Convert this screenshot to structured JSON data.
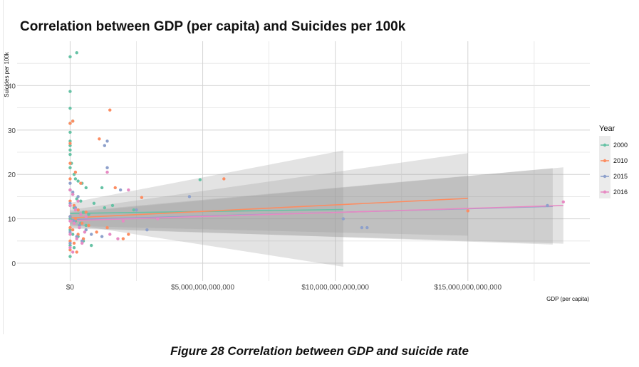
{
  "caption": "Figure 28 Correlation between GDP and suicide rate",
  "chart_data": {
    "type": "scatter",
    "title": "Correlation between GDP (per capita) and Suicides per 100k",
    "xlabel": "GDP (per capita)",
    "ylabel": "Suicides per 100k",
    "xlim": [
      -2000000000000,
      19600000000000
    ],
    "ylim": [
      -4,
      50
    ],
    "x_ticks": [
      0,
      5000000000000,
      10000000000000,
      15000000000000
    ],
    "x_tick_labels": [
      "$0",
      "$5,000,000,000,000",
      "$10,000,000,000,000",
      "$15,000,000,000,000"
    ],
    "y_ticks": [
      0,
      10,
      20,
      30,
      40
    ],
    "y_tick_labels": [
      "0",
      "10",
      "20",
      "30",
      "40"
    ],
    "grid": true,
    "legend": {
      "title": "Year",
      "position": "right"
    },
    "series": [
      {
        "name": "2000",
        "color": "#66c2a5",
        "points": [
          [
            0,
            46.5
          ],
          [
            250000000000,
            47.4
          ],
          [
            0,
            38.7
          ],
          [
            0,
            34.9
          ],
          [
            0,
            31.5
          ],
          [
            100000000000,
            32.0
          ],
          [
            0,
            29.5
          ],
          [
            0,
            27.5
          ],
          [
            0,
            26.5
          ],
          [
            0,
            25.5
          ],
          [
            0,
            24.5
          ],
          [
            50000000000,
            22.5
          ],
          [
            0,
            21.5
          ],
          [
            150000000000,
            20.0
          ],
          [
            200000000000,
            19.0
          ],
          [
            300000000000,
            18.5
          ],
          [
            450000000000,
            18.0
          ],
          [
            600000000000,
            17.0
          ],
          [
            0,
            16.5
          ],
          [
            100000000000,
            15.5
          ],
          [
            250000000000,
            14.5
          ],
          [
            400000000000,
            14.0
          ],
          [
            0,
            13.0
          ],
          [
            150000000000,
            12.5
          ],
          [
            300000000000,
            12.0
          ],
          [
            500000000000,
            11.5
          ],
          [
            700000000000,
            11.0
          ],
          [
            0,
            10.0
          ],
          [
            200000000000,
            9.5
          ],
          [
            400000000000,
            9.0
          ],
          [
            600000000000,
            8.5
          ],
          [
            0,
            7.5
          ],
          [
            100000000000,
            6.5
          ],
          [
            300000000000,
            6.0
          ],
          [
            500000000000,
            5.0
          ],
          [
            0,
            4.0
          ],
          [
            150000000000,
            3.5
          ],
          [
            0,
            1.5
          ],
          [
            800000000000,
            4.0
          ],
          [
            1200000000000,
            17.0
          ],
          [
            1300000000000,
            12.5
          ],
          [
            2400000000000,
            12.0
          ],
          [
            4900000000000,
            18.8
          ],
          [
            1600000000000,
            13.0
          ],
          [
            900000000000,
            13.5
          ]
        ],
        "trend": {
          "x": [
            0,
            10300000000000
          ],
          "y": [
            11.2,
            12.1
          ],
          "ci_low": [
            8.8,
            -0.8
          ],
          "ci_high": [
            13.6,
            25.4
          ]
        }
      },
      {
        "name": "2010",
        "color": "#fc8d62",
        "points": [
          [
            0,
            31.5
          ],
          [
            100000000000,
            32.0
          ],
          [
            1500000000000,
            34.5
          ],
          [
            1100000000000,
            28.0
          ],
          [
            0,
            27.0
          ],
          [
            0,
            22.5
          ],
          [
            200000000000,
            20.5
          ],
          [
            0,
            19.0
          ],
          [
            400000000000,
            18.0
          ],
          [
            1700000000000,
            17.0
          ],
          [
            2700000000000,
            14.8
          ],
          [
            5800000000000,
            19.0
          ],
          [
            0,
            14.0
          ],
          [
            150000000000,
            13.0
          ],
          [
            300000000000,
            12.0
          ],
          [
            600000000000,
            11.5
          ],
          [
            0,
            10.5
          ],
          [
            200000000000,
            10.0
          ],
          [
            450000000000,
            9.0
          ],
          [
            700000000000,
            8.5
          ],
          [
            0,
            8.0
          ],
          [
            100000000000,
            7.5
          ],
          [
            300000000000,
            6.5
          ],
          [
            500000000000,
            5.5
          ],
          [
            0,
            5.0
          ],
          [
            150000000000,
            4.5
          ],
          [
            0,
            3.0
          ],
          [
            250000000000,
            2.5
          ],
          [
            1400000000000,
            8.0
          ],
          [
            2000000000000,
            5.5
          ],
          [
            2200000000000,
            6.5
          ],
          [
            1000000000000,
            7.0
          ],
          [
            15000000000000,
            11.8
          ]
        ],
        "trend": {
          "x": [
            0,
            15000000000000
          ],
          "y": [
            10.2,
            14.6
          ],
          "ci_low": [
            8.4,
            6.2
          ],
          "ci_high": [
            12.0,
            24.8
          ]
        }
      },
      {
        "name": "2015",
        "color": "#8da0cb",
        "points": [
          [
            1400000000000,
            27.5
          ],
          [
            1300000000000,
            26.5
          ],
          [
            1400000000000,
            21.5
          ],
          [
            1900000000000,
            16.5
          ],
          [
            4500000000000,
            15.0
          ],
          [
            0,
            18.0
          ],
          [
            100000000000,
            16.0
          ],
          [
            300000000000,
            15.0
          ],
          [
            0,
            13.5
          ],
          [
            200000000000,
            12.5
          ],
          [
            400000000000,
            11.0
          ],
          [
            0,
            10.5
          ],
          [
            150000000000,
            9.5
          ],
          [
            350000000000,
            8.5
          ],
          [
            600000000000,
            7.5
          ],
          [
            0,
            7.0
          ],
          [
            250000000000,
            6.0
          ],
          [
            450000000000,
            5.0
          ],
          [
            0,
            4.5
          ],
          [
            800000000000,
            6.5
          ],
          [
            1200000000000,
            6.0
          ],
          [
            2500000000000,
            12.0
          ],
          [
            2900000000000,
            7.5
          ],
          [
            11000000000000,
            8.0
          ],
          [
            11200000000000,
            8.0
          ],
          [
            10300000000000,
            10.0
          ],
          [
            18000000000000,
            13.0
          ]
        ],
        "trend": {
          "x": [
            0,
            18200000000000
          ],
          "y": [
            9.8,
            12.8
          ],
          "ci_low": [
            8.0,
            4.2
          ],
          "ci_high": [
            11.6,
            21.4
          ]
        }
      },
      {
        "name": "2016",
        "color": "#e78ac3",
        "points": [
          [
            1400000000000,
            20.5
          ],
          [
            2200000000000,
            16.5
          ],
          [
            0,
            16.5
          ],
          [
            100000000000,
            15.5
          ],
          [
            300000000000,
            14.0
          ],
          [
            0,
            13.0
          ],
          [
            200000000000,
            12.0
          ],
          [
            400000000000,
            11.0
          ],
          [
            600000000000,
            10.5
          ],
          [
            0,
            9.5
          ],
          [
            150000000000,
            9.0
          ],
          [
            350000000000,
            8.0
          ],
          [
            550000000000,
            7.0
          ],
          [
            0,
            6.5
          ],
          [
            250000000000,
            5.5
          ],
          [
            450000000000,
            4.5
          ],
          [
            0,
            3.5
          ],
          [
            100000000000,
            2.5
          ],
          [
            1500000000000,
            6.5
          ],
          [
            1800000000000,
            5.5
          ],
          [
            3300000000000,
            10.0
          ],
          [
            2000000000000,
            9.5
          ],
          [
            18600000000000,
            13.8
          ]
        ],
        "trend": {
          "x": [
            0,
            18600000000000
          ],
          "y": [
            9.6,
            13.0
          ],
          "ci_low": [
            7.8,
            4.4
          ],
          "ci_high": [
            11.4,
            21.6
          ]
        }
      }
    ]
  }
}
